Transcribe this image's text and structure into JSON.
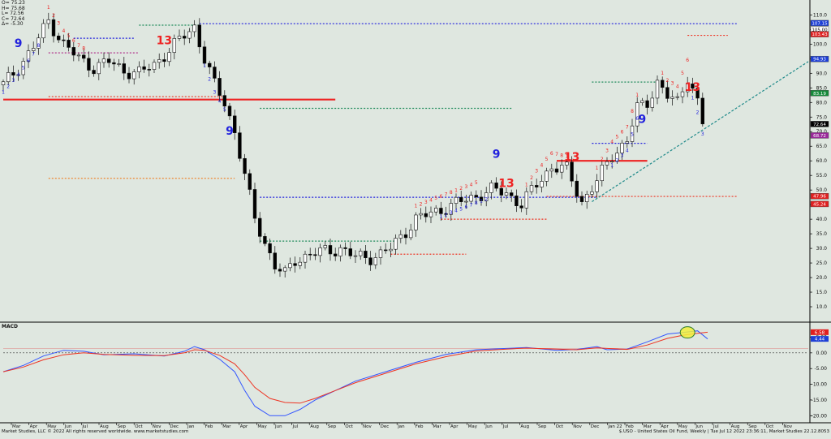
{
  "ohlc_summary": [
    {
      "key": "O",
      "value": "75.23"
    },
    {
      "key": "H",
      "value": "75.68"
    },
    {
      "key": "L",
      "value": "72.56"
    },
    {
      "key": "C",
      "value": "72.64"
    },
    {
      "key": "Δ",
      "value": "-5.30"
    }
  ],
  "footer": {
    "copyright": "Market Studies, LLC © 2022 All rights reserved worldwide. www.marketstudies.com",
    "instrument": "$.USO - United States Oil Fund, Weekly | Tue Jul 12 2022 23:36:11, Market Studies 22.12.8053"
  },
  "colors": {
    "background": "#dfe7e0",
    "up_candle": "#ffffff",
    "down_candle": "#000000",
    "buy_count": "#2222dd",
    "sell_count": "#ee2222",
    "macd_line": "#3355ff",
    "signal_line": "#ee3322",
    "trendline": "#1f8a8a",
    "highlight": "#f2ee3c"
  },
  "chart_data": [
    {
      "type": "candlestick",
      "panel": "price",
      "ylim": [
        5,
        114
      ],
      "y_ticks": [
        110,
        105,
        100,
        95,
        90,
        85,
        80,
        75,
        70,
        65,
        60,
        55,
        50,
        45,
        40,
        35,
        30,
        25,
        20,
        15,
        10
      ],
      "grid": false,
      "x_axis_labels": [
        "Mar",
        "Apr",
        "May",
        "Jun",
        "Jul",
        "Aug",
        "Sep",
        "Oct",
        "Nov",
        "Dec",
        "Jan",
        "Feb",
        "Mar",
        "Apr",
        "May",
        "Jun",
        "Jul",
        "Aug",
        "Sep",
        "Oct",
        "Nov",
        "Dec",
        "Jan",
        "Feb",
        "Mar",
        "Apr",
        "May",
        "Jun",
        "Jul",
        "Aug",
        "Sep",
        "Oct",
        "Nov",
        "Dec",
        "Jan 22",
        "Feb",
        "Mar",
        "Apr",
        "May",
        "Jun",
        "Jul",
        "Aug",
        "Sep",
        "Oct",
        "Nov"
      ],
      "close_path": [
        [
          0,
          86
        ],
        [
          3,
          92
        ],
        [
          6,
          99
        ],
        [
          9,
          108
        ],
        [
          12,
          100
        ],
        [
          15,
          95
        ],
        [
          18,
          92
        ],
        [
          21,
          94
        ],
        [
          24,
          91
        ],
        [
          27,
          90
        ],
        [
          30,
          93
        ],
        [
          33,
          98
        ],
        [
          36,
          103
        ],
        [
          38,
          106
        ],
        [
          40,
          95
        ],
        [
          42,
          86
        ],
        [
          44,
          80
        ],
        [
          46,
          70
        ],
        [
          48,
          55
        ],
        [
          50,
          40
        ],
        [
          52,
          32
        ],
        [
          54,
          24
        ],
        [
          56,
          21
        ],
        [
          58,
          26
        ],
        [
          61,
          28
        ],
        [
          64,
          29
        ],
        [
          67,
          30
        ],
        [
          70,
          27
        ],
        [
          73,
          27
        ],
        [
          75,
          28
        ],
        [
          77,
          30
        ],
        [
          79,
          34
        ],
        [
          82,
          40
        ],
        [
          85,
          42
        ],
        [
          88,
          44
        ],
        [
          91,
          46
        ],
        [
          94,
          48
        ],
        [
          97,
          50
        ],
        [
          100,
          49
        ],
        [
          103,
          45
        ],
        [
          106,
          52
        ],
        [
          109,
          58
        ],
        [
          112,
          57
        ],
        [
          115,
          46
        ],
        [
          118,
          53
        ],
        [
          121,
          62
        ],
        [
          124,
          67
        ],
        [
          126,
          78
        ],
        [
          128,
          80
        ],
        [
          130,
          87
        ],
        [
          132,
          82
        ],
        [
          134,
          80
        ],
        [
          136,
          89
        ],
        [
          137,
          85
        ],
        [
          138,
          80
        ],
        [
          139,
          72.64
        ]
      ],
      "dashed_levels": [
        {
          "y": 107,
          "x_from": 39,
          "x_to": 146,
          "color": "#2222dd"
        },
        {
          "y": 106.5,
          "x_from": 27,
          "x_to": 39,
          "color": "#1f8a5a"
        },
        {
          "y": 102,
          "x_from": 14,
          "x_to": 26,
          "color": "#2222dd"
        },
        {
          "y": 97,
          "x_from": 9,
          "x_to": 27,
          "color": "#b0308a"
        },
        {
          "y": 82,
          "x_from": 9,
          "x_to": 44,
          "color": "#ee3322"
        },
        {
          "y": 78,
          "x_from": 51,
          "x_to": 101,
          "color": "#1f8a5a"
        },
        {
          "y": 54,
          "x_from": 9,
          "x_to": 46,
          "color": "#ee8833"
        },
        {
          "y": 47.5,
          "x_from": 51,
          "x_to": 118,
          "color": "#2222dd"
        },
        {
          "y": 87,
          "x_from": 117,
          "x_to": 130,
          "color": "#1f8a5a"
        },
        {
          "y": 66,
          "x_from": 117,
          "x_to": 128,
          "color": "#2222dd"
        },
        {
          "y": 47.8,
          "x_from": 108,
          "x_to": 146,
          "color": "#ee3322"
        },
        {
          "y": 32.5,
          "x_from": 51,
          "x_to": 78,
          "color": "#1f8a5a"
        },
        {
          "y": 28,
          "x_from": 77,
          "x_to": 92,
          "color": "#ee3322"
        },
        {
          "y": 40,
          "x_from": 87,
          "x_to": 108,
          "color": "#ee3322"
        },
        {
          "y": 103,
          "x_from": 136,
          "x_to": 144,
          "color": "#ee3322"
        }
      ],
      "solid_levels": [
        {
          "y": 81,
          "x_from": 0,
          "x_to": 66,
          "color": "#ee2222"
        },
        {
          "y": 60,
          "x_from": 110,
          "x_to": 128,
          "color": "#ee2222"
        }
      ],
      "trendline": {
        "from": [
          117,
          46
        ],
        "to": [
          160,
          94
        ]
      },
      "buy_setup_nines": [
        [
          3,
          99
        ],
        [
          45,
          69
        ],
        [
          98,
          61
        ],
        [
          127,
          73
        ]
      ],
      "sell_countdown_thirteens": [
        [
          32,
          100
        ],
        [
          100,
          51
        ],
        [
          113,
          60
        ],
        [
          137,
          84
        ]
      ],
      "right_axis_badges": [
        {
          "label": "107.15",
          "y": 107.2,
          "color": "#1d3fd6"
        },
        {
          "label": "105.00",
          "y": 105,
          "color": "#ffffff"
        },
        {
          "label": "103.43",
          "y": 103.4,
          "color": "#e02020"
        },
        {
          "label": "94.93",
          "y": 94.9,
          "color": "#1d3fd6"
        },
        {
          "label": "83.19",
          "y": 83.2,
          "color": "#168a3a"
        },
        {
          "label": "72.64",
          "y": 72.6,
          "color": "#000000"
        },
        {
          "label": "68.72",
          "y": 68.7,
          "color": "#9a2a9a"
        },
        {
          "label": "47.96",
          "y": 47.9,
          "color": "#e02020"
        },
        {
          "label": "45.24",
          "y": 45.2,
          "color": "#e02020"
        }
      ]
    },
    {
      "type": "line",
      "panel": "macd",
      "title": "MACD",
      "ylim": [
        -22,
        9
      ],
      "y_ticks": [
        5.0,
        0.0,
        -5.0,
        -10.0,
        -15.0,
        -20.0
      ],
      "series": [
        {
          "values": [
            [
              0,
              -6
            ],
            [
              4,
              -4
            ],
            [
              8,
              -1
            ],
            [
              12,
              0.8
            ],
            [
              16,
              0.5
            ],
            [
              20,
              -0.6
            ],
            [
              26,
              -0.3
            ],
            [
              32,
              -1
            ],
            [
              36,
              0.5
            ],
            [
              38,
              2
            ],
            [
              40,
              1
            ],
            [
              43,
              -2
            ],
            [
              46,
              -6
            ],
            [
              48,
              -12
            ],
            [
              50,
              -17
            ],
            [
              53,
              -20
            ],
            [
              56,
              -20
            ],
            [
              59,
              -18
            ],
            [
              62,
              -15
            ],
            [
              66,
              -12
            ],
            [
              70,
              -9
            ],
            [
              76,
              -6
            ],
            [
              82,
              -3
            ],
            [
              88,
              -0.5
            ],
            [
              94,
              1
            ],
            [
              100,
              1.4
            ],
            [
              104,
              1.7
            ],
            [
              110,
              0.8
            ],
            [
              114,
              1.1
            ],
            [
              118,
              2
            ],
            [
              120,
              1
            ],
            [
              124,
              1.2
            ],
            [
              128,
              3.5
            ],
            [
              132,
              6
            ],
            [
              135,
              6.5
            ],
            [
              138,
              7
            ],
            [
              140,
              4.44
            ]
          ]
        },
        {
          "values": [
            [
              0,
              -6
            ],
            [
              4,
              -4.5
            ],
            [
              8,
              -2.2
            ],
            [
              12,
              -0.6
            ],
            [
              16,
              0
            ],
            [
              20,
              -0.5
            ],
            [
              26,
              -0.8
            ],
            [
              32,
              -0.9
            ],
            [
              36,
              0
            ],
            [
              38,
              1
            ],
            [
              40,
              0.8
            ],
            [
              43,
              -0.8
            ],
            [
              46,
              -3.5
            ],
            [
              48,
              -7
            ],
            [
              50,
              -11
            ],
            [
              53,
              -14.5
            ],
            [
              56,
              -15.8
            ],
            [
              59,
              -16
            ],
            [
              62,
              -14.5
            ],
            [
              66,
              -12
            ],
            [
              70,
              -9.5
            ],
            [
              76,
              -6.5
            ],
            [
              82,
              -3.5
            ],
            [
              88,
              -1.2
            ],
            [
              94,
              0.6
            ],
            [
              100,
              1.2
            ],
            [
              104,
              1.5
            ],
            [
              110,
              1.2
            ],
            [
              114,
              1
            ],
            [
              118,
              1.6
            ],
            [
              120,
              1.4
            ],
            [
              124,
              1.1
            ],
            [
              128,
              2.5
            ],
            [
              132,
              4.6
            ],
            [
              135,
              5.6
            ],
            [
              138,
              6.2
            ],
            [
              140,
              6.58
            ]
          ]
        }
      ],
      "right_axis_badges": [
        {
          "label": "6.58",
          "y": 6.58,
          "color": "#e02020"
        },
        {
          "label": "4.44",
          "y": 4.44,
          "color": "#1d3fd6"
        }
      ],
      "highlight_ellipse": {
        "x": 136,
        "y": 6.5
      }
    }
  ]
}
